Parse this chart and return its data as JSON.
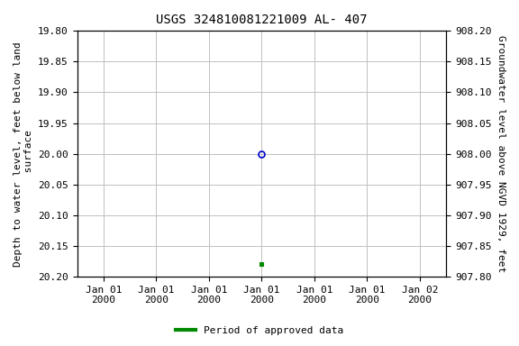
{
  "title": "USGS 324810081221009 AL- 407",
  "ylabel_left": "Depth to water level, feet below land\n surface",
  "ylabel_right": "Groundwater level above NGVD 1929, feet",
  "ylim_left_top": 19.8,
  "ylim_left_bottom": 20.2,
  "ylim_right_top": 908.2,
  "ylim_right_bottom": 907.8,
  "y_ticks_left": [
    19.8,
    19.85,
    19.9,
    19.95,
    20.0,
    20.05,
    20.1,
    20.15,
    20.2
  ],
  "y_ticks_right": [
    908.2,
    908.15,
    908.1,
    908.05,
    908.0,
    907.95,
    907.9,
    907.85,
    907.8
  ],
  "x_ticks": [
    0,
    1,
    2,
    3,
    4,
    5,
    6
  ],
  "x_labels": [
    "Jan 01\n2000",
    "Jan 01\n2000",
    "Jan 01\n2000",
    "Jan 01\n2000",
    "Jan 01\n2000",
    "Jan 01\n2000",
    "Jan 02\n2000"
  ],
  "data_x_open": 3,
  "data_y_open": 20.0,
  "data_x_filled": 3,
  "data_y_filled": 20.18,
  "open_circle_color": "#0000cc",
  "filled_square_color": "#008800",
  "legend_label": "Period of approved data",
  "legend_line_color": "#008800",
  "background_color": "#ffffff",
  "grid_color": "#c0c0c0",
  "title_fontsize": 10,
  "label_fontsize": 8,
  "tick_fontsize": 8,
  "xlim": [
    -0.5,
    6.5
  ]
}
